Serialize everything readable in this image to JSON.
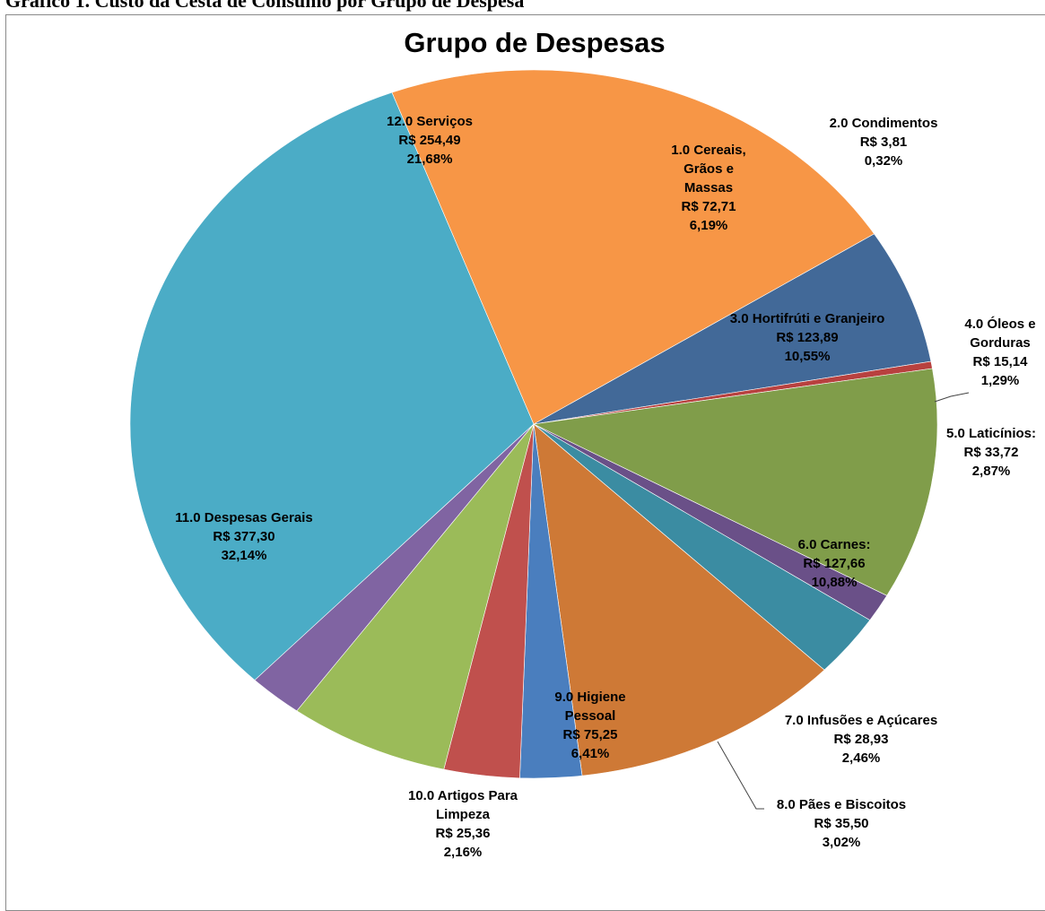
{
  "document": {
    "caption": "Gráfico 1. Custo da Cesta de Consumo por Grupo de Despesa"
  },
  "chart_data": {
    "type": "pie",
    "title": "Grupo de Despesas",
    "slices": [
      {
        "label": "1.0 Cereais, Grãos e Massas",
        "value_text": "R$ 72,71",
        "percent_text": "6,19%",
        "value": 72.71,
        "percent": 6.19,
        "color": "#426998"
      },
      {
        "label": "2.0 Condimentos",
        "value_text": "R$ 3,81",
        "percent_text": "0,32%",
        "value": 3.81,
        "percent": 0.32,
        "color": "#b8413f"
      },
      {
        "label": "3.0 Hortifrúti e Granjeiro",
        "value_text": "R$ 123,89",
        "percent_text": "10,55%",
        "value": 123.89,
        "percent": 10.55,
        "color": "#809d4a"
      },
      {
        "label": "4.0 Óleos e Gorduras",
        "value_text": "R$ 15,14",
        "percent_text": "1,29%",
        "value": 15.14,
        "percent": 1.29,
        "color": "#6a5088"
      },
      {
        "label": "5.0 Laticínios:",
        "value_text": "R$ 33,72",
        "percent_text": "2,87%",
        "value": 33.72,
        "percent": 2.87,
        "color": "#3b8ca2"
      },
      {
        "label": "6.0 Carnes:",
        "value_text": "R$ 127,66",
        "percent_text": "10,88%",
        "value": 127.66,
        "percent": 10.88,
        "color": "#ce7936"
      },
      {
        "label": "7.0 Infusões e Açúcares",
        "value_text": "R$ 28,93",
        "percent_text": "2,46%",
        "value": 28.93,
        "percent": 2.46,
        "color": "#4a7ebe"
      },
      {
        "label": "8.0 Pães e Biscoitos",
        "value_text": "R$ 35,50",
        "percent_text": "3,02%",
        "value": 35.5,
        "percent": 3.02,
        "color": "#c0504d"
      },
      {
        "label": "9.0 Higiene Pessoal",
        "value_text": "R$ 75,25",
        "percent_text": "6,41%",
        "value": 75.25,
        "percent": 6.41,
        "color": "#9bbb59"
      },
      {
        "label": "10.0 Artigos Para Limpeza",
        "value_text": "R$ 25,36",
        "percent_text": "2,16%",
        "value": 25.36,
        "percent": 2.16,
        "color": "#8064a2"
      },
      {
        "label": "11.0 Despesas Gerais",
        "value_text": "R$ 377,30",
        "percent_text": "32,14%",
        "value": 377.3,
        "percent": 32.14,
        "color": "#4bacc6"
      },
      {
        "label": "12.0 Serviços",
        "value_text": "R$ 254,49",
        "percent_text": "21,68%",
        "value": 254.49,
        "percent": 21.68,
        "color": "#f79646"
      }
    ],
    "legend": "none"
  }
}
